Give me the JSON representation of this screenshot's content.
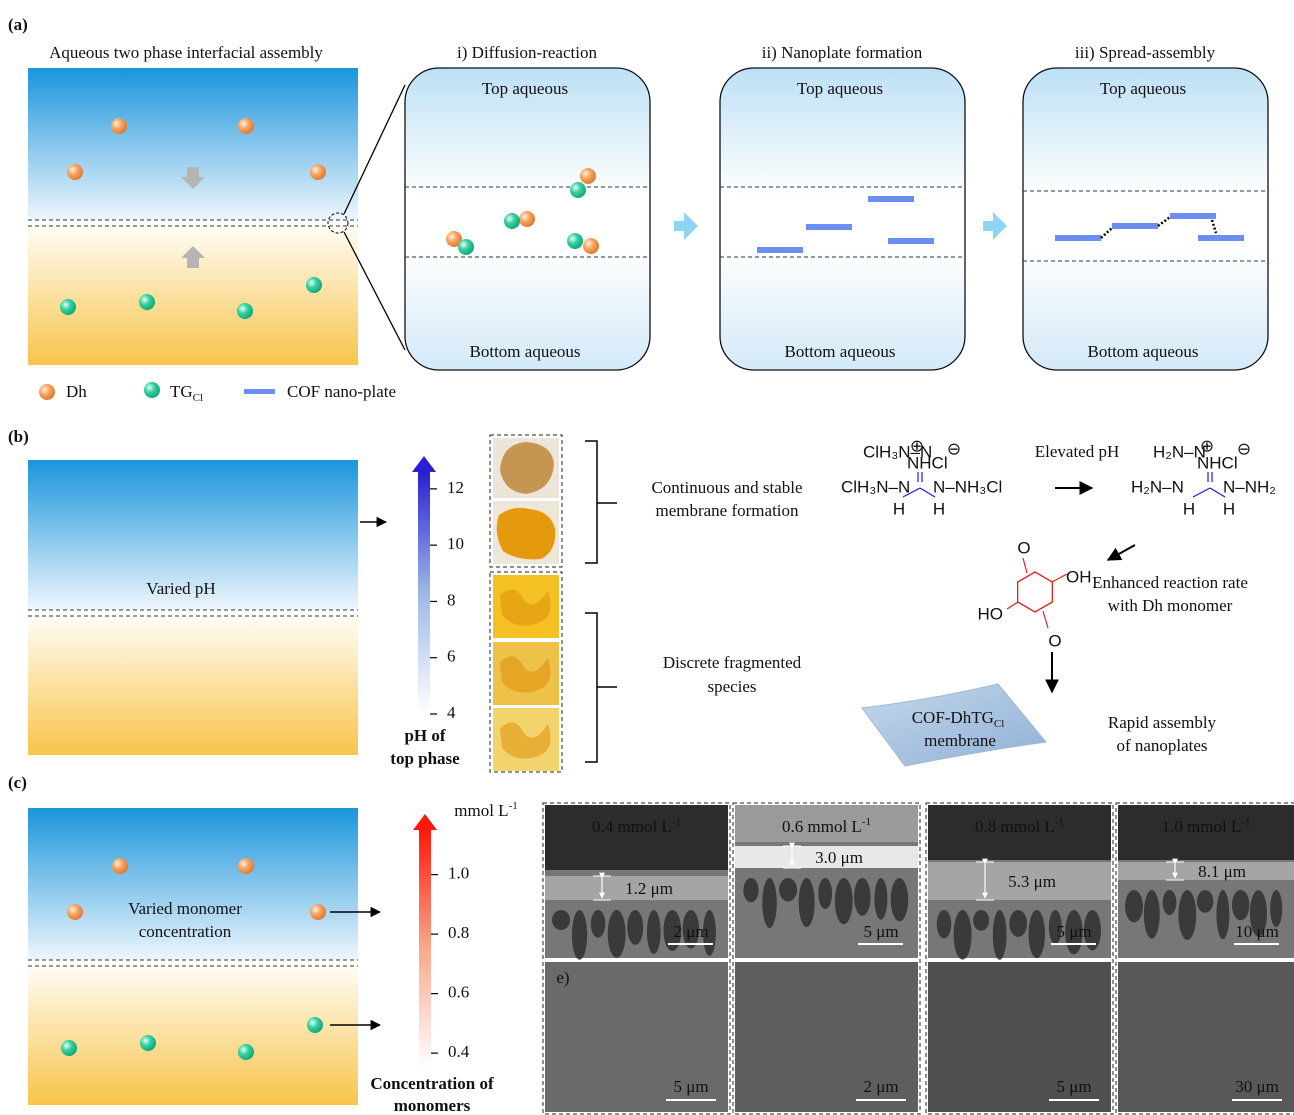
{
  "panel_a": {
    "label": "(a)",
    "title": "Aqueous two phase interfacial assembly",
    "steps": [
      {
        "title": "i) Diffusion-reaction",
        "top": "Top aqueous",
        "bottom": "Bottom aqueous"
      },
      {
        "title": "ii) Nanoplate formation",
        "top": "Top aqueous",
        "bottom": "Bottom aqueous"
      },
      {
        "title": "iii) Spread-assembly",
        "top": "Top aqueous",
        "bottom": "Bottom aqueous"
      }
    ],
    "legend": {
      "dh": "Dh",
      "tg": "TG",
      "tg_sub": "Cl",
      "cof": "COF nano-plate"
    }
  },
  "panel_b": {
    "label": "(b)",
    "box_text": "Varied pH",
    "colorbar": {
      "lim": [
        4,
        12.6
      ],
      "ticks": [
        12,
        10,
        8,
        6,
        4
      ],
      "label": [
        "pH of",
        "top phase"
      ]
    },
    "continuous": [
      "Continuous and stable",
      "membrane formation"
    ],
    "discrete": [
      "Discrete fragmented",
      "species"
    ],
    "reactant": [
      "ClH₃N–N",
      "⊕",
      "NHCl",
      "⊖",
      "ClH₃N–N",
      "N–NH₃Cl",
      "H",
      "H"
    ],
    "product": [
      "H₂N–N",
      "⊕",
      "NHCl",
      "⊖",
      "H₂N–N",
      "N–NH₂",
      "H",
      "H"
    ],
    "aldehyde": [
      "O",
      "OH",
      "HO",
      "O"
    ],
    "elevated": "Elevated pH",
    "enhanced": [
      "Enhanced reaction rate",
      "with Dh monomer"
    ],
    "membrane": {
      "name": "COF-DhTG",
      "sub": "Cl",
      "line2": "membrane"
    },
    "rapid": [
      "Rapid assembly",
      "of nanoplates"
    ]
  },
  "panel_c": {
    "label": "(c)",
    "box_text": [
      "Varied monomer",
      "concentration"
    ],
    "colorbar": {
      "unit": "mmol L",
      "unit_sup": "-1",
      "lim": [
        0.35,
        1.15
      ],
      "ticks": [
        {
          "value": 1,
          "label": "1.0"
        },
        0.8,
        0.6,
        0.4
      ],
      "label": [
        "Concentration of",
        "monomers"
      ]
    },
    "sem": [
      {
        "conc": "0.4 mmol L",
        "sup": "-1",
        "thickness": "1.2 μm",
        "scale_top": "2 μm",
        "scale_bottom": "5 μm"
      },
      {
        "conc": "0.6 mmol L",
        "sup": "-1",
        "thickness": "3.0 μm",
        "scale_top": "5 μm",
        "scale_bottom": "2 μm"
      },
      {
        "conc": "0.8 mmol L",
        "sup": "-1",
        "thickness": "5.3 μm",
        "scale_top": "5 μm",
        "scale_bottom": "5 μm"
      },
      {
        "conc": "1.0 mmol L",
        "sup": "-1",
        "thickness": "8.1 μm",
        "scale_top": "10 μm",
        "scale_bottom": "30 μm"
      }
    ],
    "sem_tag": "e)"
  }
}
